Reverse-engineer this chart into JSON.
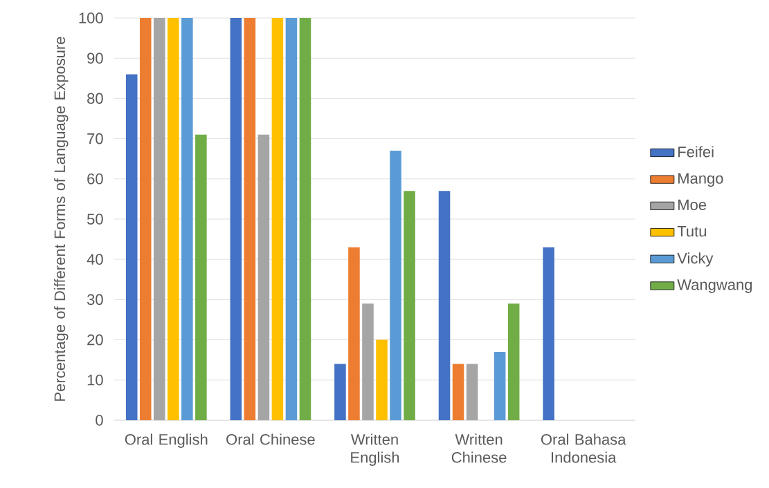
{
  "chart_data": {
    "type": "bar",
    "ylabel": "Percentage of Different Forms of Language Exposure",
    "categories": [
      "Oral English",
      "Oral Chinese",
      "Written English",
      "Written Chinese",
      "Oral Bahasa Indonesia"
    ],
    "series": [
      {
        "name": "Feifei",
        "color": "#4472c4",
        "values": [
          86,
          100,
          14,
          57,
          43
        ]
      },
      {
        "name": "Mango",
        "color": "#ed7d31",
        "values": [
          100,
          100,
          43,
          14,
          0
        ]
      },
      {
        "name": "Moe",
        "color": "#a5a5a5",
        "values": [
          100,
          71,
          29,
          14,
          0
        ]
      },
      {
        "name": "Tutu",
        "color": "#ffc000",
        "values": [
          100,
          100,
          20,
          0,
          0
        ]
      },
      {
        "name": "Vicky",
        "color": "#5b9bd5",
        "values": [
          100,
          100,
          67,
          17,
          0
        ]
      },
      {
        "name": "Wangwang",
        "color": "#70ad47",
        "values": [
          71,
          100,
          57,
          29,
          0
        ]
      }
    ],
    "ylim": [
      0,
      100
    ],
    "yticks": [
      0,
      10,
      20,
      30,
      40,
      50,
      60,
      70,
      80,
      90,
      100
    ],
    "grid": "y",
    "legend": "right"
  }
}
